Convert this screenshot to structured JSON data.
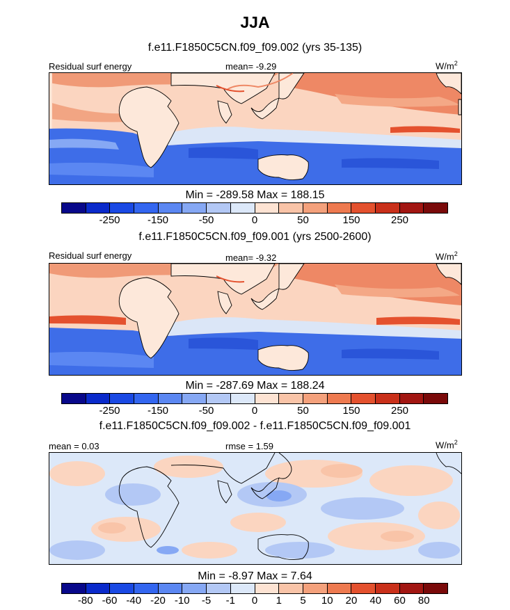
{
  "title": "JJA",
  "panels": [
    {
      "subtitle": "f.e11.F1850C5CN.f09_f09.002 (yrs 35-135)",
      "left_label": "Residual surf energy",
      "center_label": "mean=  -9.29",
      "units": "W/m",
      "units_sup": "2",
      "minmax": "Min = -289.58 Max = 188.15",
      "colorbar_ticks": [
        "-250",
        "-150",
        "-50",
        "0",
        "50",
        "150",
        "250"
      ],
      "field": "absolute"
    },
    {
      "subtitle": "f.e11.F1850C5CN.f09_f09.001 (yrs 2500-2600)",
      "left_label": "Residual surf energy",
      "center_label": "mean=  -9.32",
      "units": "W/m",
      "units_sup": "2",
      "minmax": "Min = -287.69 Max = 188.24",
      "colorbar_ticks": [
        "-250",
        "-150",
        "-50",
        "0",
        "50",
        "150",
        "250"
      ],
      "field": "absolute"
    },
    {
      "subtitle": "f.e11.F1850C5CN.f09_f09.002 - f.e11.F1850C5CN.f09_f09.001",
      "left_label": "mean =   0.03",
      "center_label": "rmse =   1.59",
      "units": "W/m",
      "units_sup": "2",
      "minmax": "Min =  -8.97 Max =   7.64",
      "colorbar_ticks": [
        "-80",
        "-60",
        "-40",
        "-20",
        "-10",
        "-5",
        "-1",
        "0",
        "1",
        "5",
        "10",
        "20",
        "40",
        "60",
        "80"
      ],
      "field": "difference"
    }
  ],
  "colors": {
    "colorbar": [
      "#08088a",
      "#0a2acb",
      "#1a49e4",
      "#3366f0",
      "#5b87f2",
      "#86a8f4",
      "#b3c8f5",
      "#dce8f9",
      "#fde3d3",
      "#f9c4a8",
      "#f4a17c",
      "#ee7a50",
      "#e4512e",
      "#c9301a",
      "#a21612",
      "#7a0a0a"
    ]
  }
}
